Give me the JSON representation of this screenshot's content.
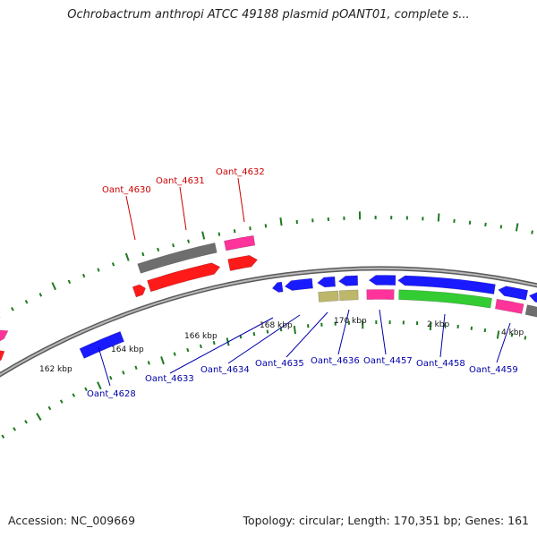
{
  "title": "Ochrobactrum anthropi ATCC 49188 plasmid pOANT01, complete s...",
  "footer": {
    "accession": "Accession: NC_009669",
    "summary": "Topology: circular; Length: 170,351 bp; Genes: 161"
  },
  "colors": {
    "backbone": "#8a8a8a",
    "tick": "#1f7a1f",
    "label_forward": "#cc0000",
    "label_reverse": "#0000aa",
    "red": "#ff1a1a",
    "pink": "#ff3399",
    "gray": "#6e6e6e",
    "blue": "#1a1aff",
    "khaki": "#bdb76b",
    "green": "#33cc33"
  },
  "axis_labels": [
    {
      "name": "tick-label-162",
      "text": "162 kbp"
    },
    {
      "name": "tick-label-164",
      "text": "164 kbp"
    },
    {
      "name": "tick-label-166",
      "text": "166 kbp"
    },
    {
      "name": "tick-label-168",
      "text": "168 kbp"
    },
    {
      "name": "tick-label-170",
      "text": "170 kbp"
    },
    {
      "name": "tick-label-2",
      "text": "2 kbp"
    },
    {
      "name": "tick-label-4",
      "text": "4 kbp"
    }
  ],
  "gene_labels": [
    {
      "name": "label-oant-4630",
      "text": "Oant_4630",
      "strand": "forward"
    },
    {
      "name": "label-oant-4631",
      "text": "Oant_4631",
      "strand": "forward"
    },
    {
      "name": "label-oant-4632",
      "text": "Oant_4632",
      "strand": "forward"
    },
    {
      "name": "label-oant-4628",
      "text": "Oant_4628",
      "strand": "reverse"
    },
    {
      "name": "label-oant-4633",
      "text": "Oant_4633",
      "strand": "reverse"
    },
    {
      "name": "label-oant-4634",
      "text": "Oant_4634",
      "strand": "reverse"
    },
    {
      "name": "label-oant-4635",
      "text": "Oant_4635",
      "strand": "reverse"
    },
    {
      "name": "label-oant-4636",
      "text": "Oant_4636",
      "strand": "reverse"
    },
    {
      "name": "label-oant-4457",
      "text": "Oant_4457",
      "strand": "reverse"
    },
    {
      "name": "label-oant-4458",
      "text": "Oant_4458",
      "strand": "reverse"
    },
    {
      "name": "label-oant-4459",
      "text": "Oant_4459",
      "strand": "reverse"
    }
  ]
}
